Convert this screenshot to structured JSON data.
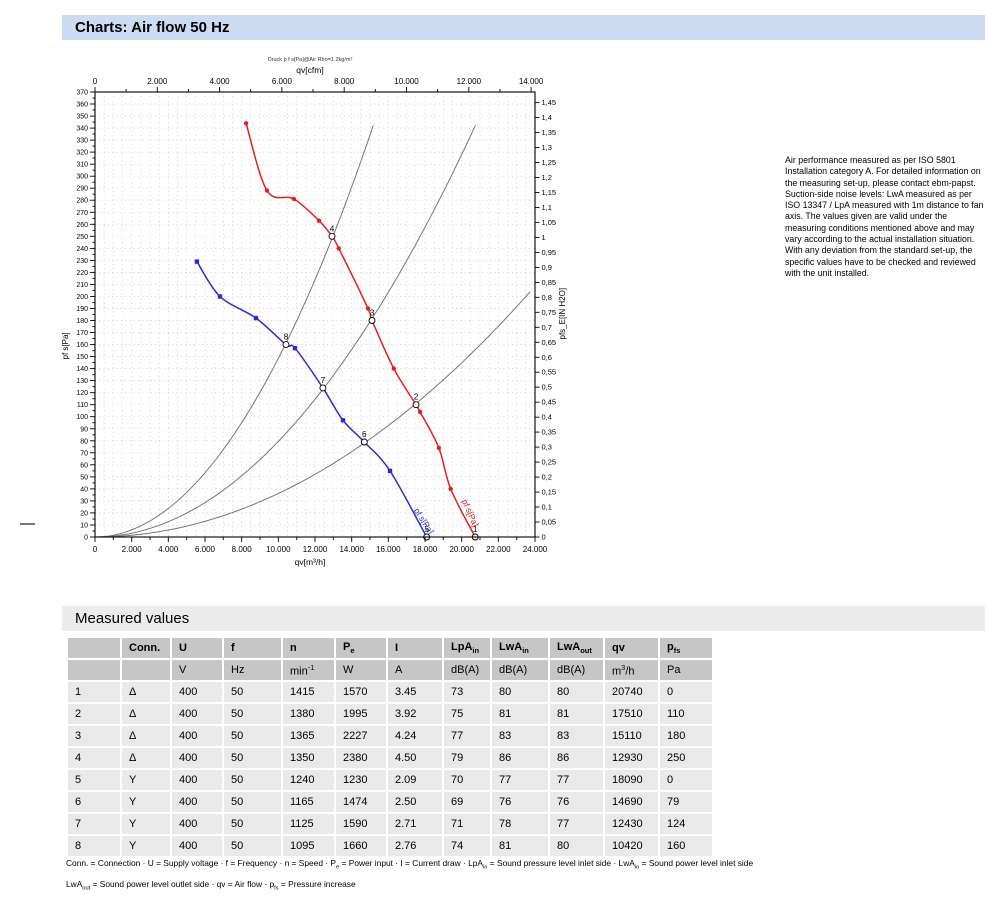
{
  "page": {
    "title": "Charts: Air flow 50 Hz",
    "measured_values_title": "Measured values"
  },
  "note": "Air performance measured as per ISO 5801 Installation category A. For detailed information on the measuring set-up, please contact ebm-papst. Suction-side noise levels: LwA measured as per ISO 13347 / LpA measured with 1m distance to fan axis. The values given are valid under the measuring conditions mentioned above and may vary according to the actual installation situation. With any deviation from the standard set-up, the specific values have to be checked and reviewed with the unit installed.",
  "chart_data": {
    "type": "line",
    "title": "Druck p f s[Pa]@Air Rho=1.2kg/m³",
    "axes": {
      "bottom": {
        "label": "qv[m³/h]",
        "min": 0,
        "max": 24000,
        "major": 2000,
        "minor": 1000
      },
      "top": {
        "label": "qv[cfm]",
        "min": 0,
        "max": 14000,
        "major": 2000,
        "minor": 1000,
        "m3h_per_cfm": 1.69901
      },
      "left": {
        "label": "pf s[Pa]",
        "min": 0,
        "max": 370,
        "major": 10,
        "minor": 5
      },
      "right": {
        "label": "pfs_E[IN H2O]",
        "min": 0,
        "max": 1.45,
        "major": 0.05,
        "pa_per_unit": 249.0889
      }
    },
    "grid": {
      "x_step": 500,
      "y_step": 10,
      "color": "#b9b9b9"
    },
    "series": [
      {
        "name": "max-curve-delta",
        "color": "#e02020",
        "marker": "circle",
        "points": [
          [
            8240,
            344
          ],
          [
            9380,
            288
          ],
          [
            10850,
            281
          ],
          [
            12220,
            263
          ],
          [
            12930,
            250
          ],
          [
            13300,
            240
          ],
          [
            14890,
            190
          ],
          [
            15110,
            180
          ],
          [
            16300,
            140
          ],
          [
            17510,
            110
          ],
          [
            17730,
            104
          ],
          [
            18760,
            74
          ],
          [
            19400,
            40
          ],
          [
            20740,
            0
          ]
        ],
        "marker_points": [
          [
            8240,
            344
          ],
          [
            9380,
            288
          ],
          [
            10850,
            281
          ],
          [
            12220,
            263
          ],
          [
            13300,
            240
          ],
          [
            14890,
            190
          ],
          [
            16300,
            140
          ],
          [
            17730,
            104
          ],
          [
            18760,
            74
          ],
          [
            19400,
            40
          ]
        ],
        "curve_label": {
          "text": "pf s[Pa]",
          "qv": 20000,
          "p": 30,
          "angle": 66
        }
      },
      {
        "name": "max-curve-Y",
        "color": "#2a2ad0",
        "marker": "square",
        "points": [
          [
            5560,
            229
          ],
          [
            6820,
            200
          ],
          [
            8780,
            182
          ],
          [
            10420,
            160
          ],
          [
            10910,
            157
          ],
          [
            12430,
            124
          ],
          [
            13530,
            97
          ],
          [
            14690,
            79
          ],
          [
            16090,
            55
          ],
          [
            18090,
            0
          ]
        ],
        "marker_points": [
          [
            5560,
            229
          ],
          [
            6820,
            200
          ],
          [
            8780,
            182
          ],
          [
            10910,
            157
          ],
          [
            13530,
            97
          ],
          [
            16090,
            55
          ]
        ],
        "curve_label": {
          "text": "pf s[Pa]",
          "qv": 17380,
          "p": 22,
          "angle": 57
        }
      }
    ],
    "operating_points": [
      {
        "n": "1",
        "qv": 20740,
        "pfs": 0
      },
      {
        "n": "2",
        "qv": 17510,
        "pfs": 110
      },
      {
        "n": "3",
        "qv": 15110,
        "pfs": 180
      },
      {
        "n": "4",
        "qv": 12930,
        "pfs": 250
      },
      {
        "n": "5",
        "qv": 18090,
        "pfs": 0
      },
      {
        "n": "6",
        "qv": 14690,
        "pfs": 79
      },
      {
        "n": "7",
        "qv": 12430,
        "pfs": 124
      },
      {
        "n": "8",
        "qv": 10420,
        "pfs": 160
      }
    ],
    "system_curves": [
      {
        "k": 1.485e-06
      },
      {
        "k": 7.95e-07
      },
      {
        "k": 3.62e-07
      }
    ],
    "system_curve_color": "#757575",
    "system_curve_clip_pa": 350
  },
  "table": {
    "headers": [
      "",
      "Conn.",
      "U",
      "f",
      "n",
      "P~e~",
      "I",
      "LpA~in~",
      "LwA~in~",
      "LwA~out~",
      "qv",
      "p~fs~"
    ],
    "units": [
      "",
      "",
      "V",
      "Hz",
      "min^-1^",
      "W",
      "A",
      "dB(A)",
      "dB(A)",
      "dB(A)",
      "m^3^/h",
      "Pa"
    ],
    "rows": [
      [
        "1",
        "Δ",
        "400",
        "50",
        "1415",
        "1570",
        "3.45",
        "73",
        "80",
        "80",
        "20740",
        "0"
      ],
      [
        "2",
        "Δ",
        "400",
        "50",
        "1380",
        "1995",
        "3.92",
        "75",
        "81",
        "81",
        "17510",
        "110"
      ],
      [
        "3",
        "Δ",
        "400",
        "50",
        "1365",
        "2227",
        "4.24",
        "77",
        "83",
        "83",
        "15110",
        "180"
      ],
      [
        "4",
        "Δ",
        "400",
        "50",
        "1350",
        "2380",
        "4.50",
        "79",
        "86",
        "86",
        "12930",
        "250"
      ],
      [
        "5",
        "Y",
        "400",
        "50",
        "1240",
        "1230",
        "2.09",
        "70",
        "77",
        "77",
        "18090",
        "0"
      ],
      [
        "6",
        "Y",
        "400",
        "50",
        "1165",
        "1474",
        "2.50",
        "69",
        "76",
        "76",
        "14690",
        "79"
      ],
      [
        "7",
        "Y",
        "400",
        "50",
        "1125",
        "1590",
        "2.71",
        "71",
        "78",
        "77",
        "12430",
        "124"
      ],
      [
        "8",
        "Y",
        "400",
        "50",
        "1095",
        "1660",
        "2.76",
        "74",
        "81",
        "80",
        "10420",
        "160"
      ]
    ]
  },
  "footnotes": [
    "Conn. = Connection · U = Supply voltage · f = Frequency · n = Speed · P~e~ = Power input · I = Current draw · LpA~in~ = Sound pressure level inlet side · LwA~in~ = Sound power level inlet side",
    "LwA~out~ = Sound power level outlet side · qv = Air flow · p~fs~ = Pressure increase"
  ],
  "colors": {
    "title_bar_bg": "#ccdcf2",
    "section_bar_bg": "#ececec",
    "table_header_bg": "#c6c6c6",
    "table_row_bg": "#e9e9e9",
    "curve_red": "#e02020",
    "curve_blue": "#2a2ad0"
  }
}
